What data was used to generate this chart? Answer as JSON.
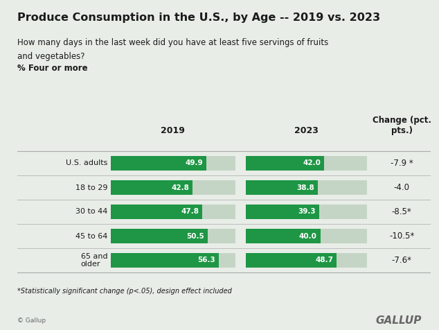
{
  "title": "Produce Consumption in the U.S., by Age -- 2019 vs. 2023",
  "subtitle_line1": "How many days in the last week did you have at least five servings of fruits",
  "subtitle_line2": "and vegetables?",
  "subtitle_bold": "% Four or more",
  "categories": [
    "U.S. adults",
    "18 to 29",
    "30 to 44",
    "45 to 64",
    "65 and\nolder"
  ],
  "values_2019": [
    49.9,
    42.8,
    47.8,
    50.5,
    56.3
  ],
  "values_2023": [
    42.0,
    38.8,
    39.3,
    40.0,
    48.7
  ],
  "changes": [
    "-7.9 *",
    "-4.0",
    "-8.5*",
    "-10.5*",
    "-7.6*"
  ],
  "bar_color_green": "#1e9645",
  "bar_color_light": "#c5d5c5",
  "bg_color": "#e8ede8",
  "text_color": "#1a1a1a",
  "footnote": "*Statistically significant change (p<.05), design effect included",
  "gallup_text": "GALLUP",
  "copyright_text": "© Gallup",
  "col_header_2019": "2019",
  "col_header_2023": "2023",
  "col_header_change": "Change (pct.\npts.)",
  "max_bar": 65,
  "line_color": "#aaaaaa"
}
